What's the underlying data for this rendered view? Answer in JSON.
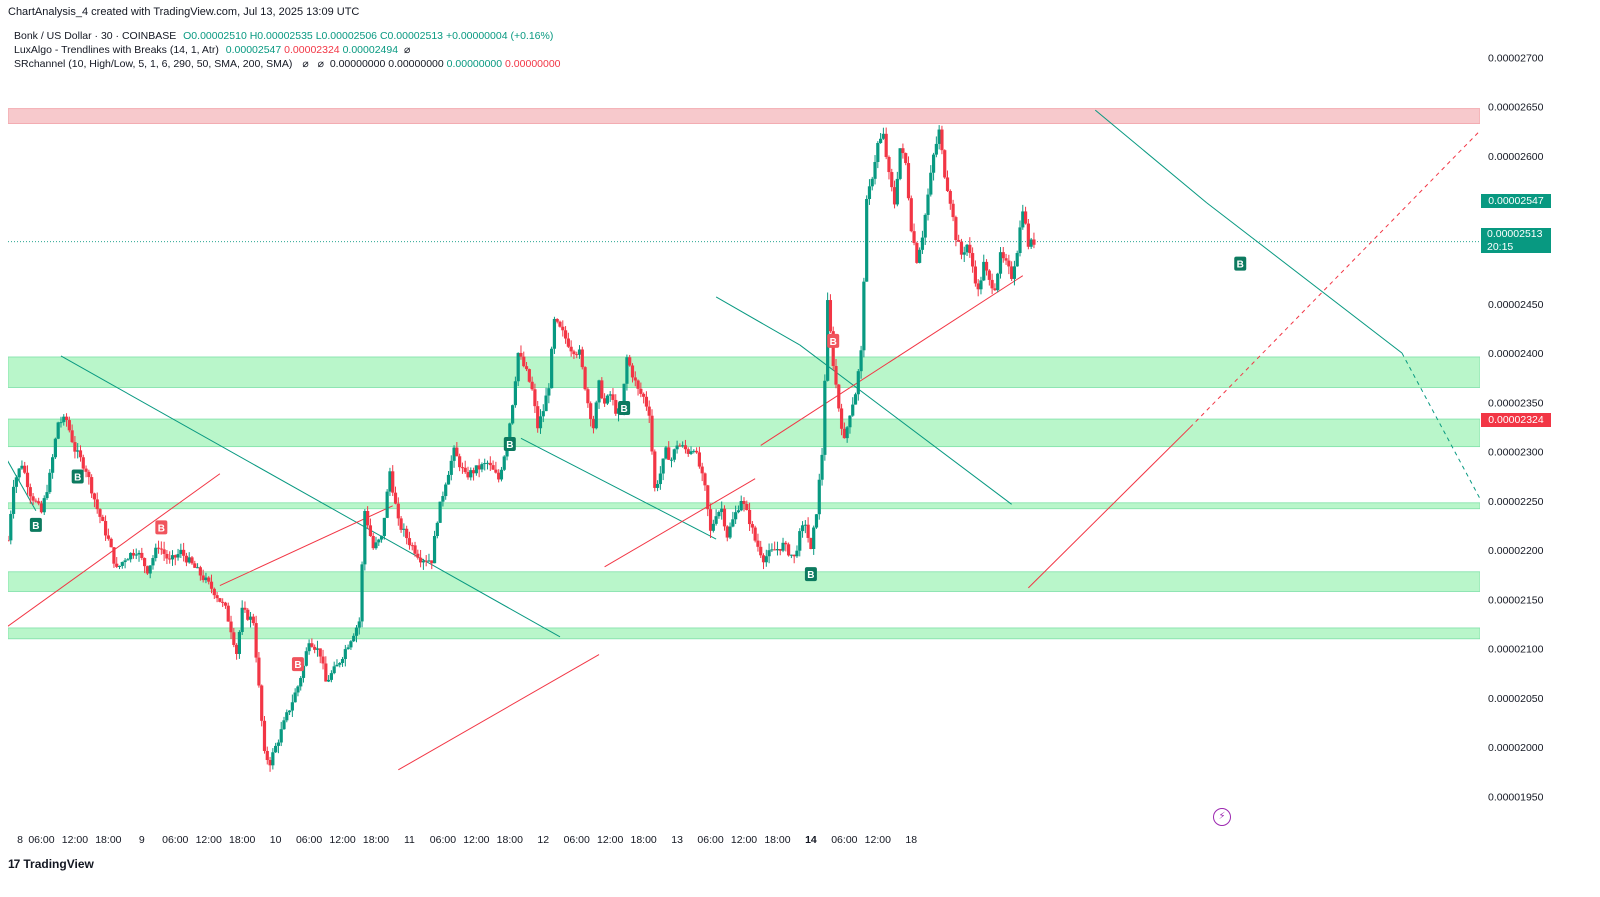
{
  "attribution": "ChartAnalysis_4 created with TradingView.com, Jul 13, 2025 13:09 UTC",
  "legend": {
    "main": {
      "name": "Bonk / US Dollar · 30 · COINBASE",
      "open": "O0.00002510",
      "high": "H0.00002535",
      "low": "L0.00002506",
      "close": "C0.00002513",
      "change": "+0.00000004 (+0.16%)"
    },
    "luxalgo": {
      "name": "LuxAlgo - Trendlines with Breaks (14, 1, Atr)",
      "v1": "0.00002547",
      "v2": "0.00002324",
      "v3": "0.00002494",
      "eye": "⌀"
    },
    "srchannel": {
      "name": "SRchannel (10, High/Low, 5, 1, 6, 290, 50, SMA, 200, SMA)",
      "eye1": "⌀",
      "eye2": "⌀",
      "v1": "0.00000000",
      "v2": "0.00000000",
      "v3": "0.00000000",
      "v4": "0.00000000"
    }
  },
  "price_labels": {
    "upper": "0.00002547",
    "current": "0.00002513",
    "countdown": "20:15",
    "lower": "0.00002324"
  },
  "footer": {
    "logo_text": "TradingView",
    "logo_mark": "17"
  },
  "colors": {
    "up": "#089981",
    "down": "#f23645",
    "zone_support": "#b9f6ca",
    "zone_resist": "#f7c9cc",
    "trend_up": "#f23645",
    "trend_down": "#089981",
    "grid": "#f0f3fa",
    "text": "#131722"
  },
  "chart_data": {
    "type": "candlestick",
    "title": "Bonk / US Dollar · 30 · COINBASE",
    "y_axis_ticks": [
      "0.00002700",
      "0.00002650",
      "0.00002600",
      "0.00002450",
      "0.00002400",
      "0.00002350",
      "0.00002300",
      "0.00002250",
      "0.00002200",
      "0.00002150",
      "0.00002100",
      "0.00002050",
      "0.00002000",
      "0.00001950"
    ],
    "y_axis_tick_values": [
      2.7e-05,
      2.65e-05,
      2.6e-05,
      2.45e-05,
      2.4e-05,
      2.35e-05,
      2.3e-05,
      2.25e-05,
      2.2e-05,
      2.15e-05,
      2.1e-05,
      2.05e-05,
      2e-05,
      1.95e-05
    ],
    "ylim": [
      1.918e-05,
      2.74e-05
    ],
    "x_axis_labels": [
      "8",
      "06:00",
      "12:00",
      "18:00",
      "9",
      "06:00",
      "12:00",
      "18:00",
      "10",
      "06:00",
      "12:00",
      "18:00",
      "11",
      "06:00",
      "12:00",
      "18:00",
      "12",
      "06:00",
      "12:00",
      "18:00",
      "13",
      "06:00",
      "12:00",
      "18:00",
      "14",
      "06:00",
      "12:00",
      "18"
    ],
    "x_axis_bold": [
      "14"
    ],
    "time_range_hours": [
      0,
      264
    ],
    "candle_interval": "30m",
    "path": [
      [
        0,
        2.21e-05
      ],
      [
        1,
        2.268e-05
      ],
      [
        2.5,
        2.288e-05
      ],
      [
        4,
        2.258e-05
      ],
      [
        6,
        2.238e-05
      ],
      [
        7.5,
        2.275e-05
      ],
      [
        9,
        2.33e-05
      ],
      [
        10.5,
        2.332e-05
      ],
      [
        12,
        2.302e-05
      ],
      [
        14,
        2.282e-05
      ],
      [
        16,
        2.242e-05
      ],
      [
        18,
        2.21e-05
      ],
      [
        19.5,
        2.18e-05
      ],
      [
        21,
        2.192e-05
      ],
      [
        23,
        2.2e-05
      ],
      [
        25,
        2.18e-05
      ],
      [
        27,
        2.205e-05
      ],
      [
        29,
        2.188e-05
      ],
      [
        31,
        2.198e-05
      ],
      [
        33,
        2.185e-05
      ],
      [
        35,
        2.172e-05
      ],
      [
        37,
        2.158e-05
      ],
      [
        39,
        2.14e-05
      ],
      [
        40,
        2.12e-05
      ],
      [
        41,
        2.096e-05
      ],
      [
        42,
        2.138e-05
      ],
      [
        44,
        2.128e-05
      ],
      [
        45,
        2.06e-05
      ],
      [
        46,
        1.992e-05
      ],
      [
        47,
        1.985e-05
      ],
      [
        48.5,
        2.008e-05
      ],
      [
        50,
        2.032e-05
      ],
      [
        52,
        2.062e-05
      ],
      [
        53,
        2.082e-05
      ],
      [
        54,
        2.11e-05
      ],
      [
        56,
        2.095e-05
      ],
      [
        57,
        2.066e-05
      ],
      [
        59,
        2.082e-05
      ],
      [
        61,
        2.105e-05
      ],
      [
        63,
        2.128e-05
      ],
      [
        64,
        2.24e-05
      ],
      [
        65.5,
        2.202e-05
      ],
      [
        67,
        2.212e-05
      ],
      [
        68.5,
        2.28e-05
      ],
      [
        70,
        2.228e-05
      ],
      [
        72,
        2.208e-05
      ],
      [
        74,
        2.192e-05
      ],
      [
        76,
        2.19e-05
      ],
      [
        77,
        2.232e-05
      ],
      [
        78.5,
        2.27e-05
      ],
      [
        80,
        2.3e-05
      ],
      [
        82,
        2.275e-05
      ],
      [
        84,
        2.282e-05
      ],
      [
        86,
        2.288e-05
      ],
      [
        88,
        2.272e-05
      ],
      [
        89.5,
        2.31e-05
      ],
      [
        90.5,
        2.35e-05
      ],
      [
        91.5,
        2.4e-05
      ],
      [
        93,
        2.38e-05
      ],
      [
        94,
        2.362e-05
      ],
      [
        95,
        2.325e-05
      ],
      [
        96,
        2.342e-05
      ],
      [
        97,
        2.368e-05
      ],
      [
        98,
        2.432e-05
      ],
      [
        99.5,
        2.42e-05
      ],
      [
        101,
        2.405e-05
      ],
      [
        102.5,
        2.4e-05
      ],
      [
        104,
        2.35e-05
      ],
      [
        105,
        2.325e-05
      ],
      [
        106,
        2.368e-05
      ],
      [
        107,
        2.348e-05
      ],
      [
        108,
        2.358e-05
      ],
      [
        109,
        2.342e-05
      ],
      [
        110,
        2.338e-05
      ],
      [
        111,
        2.395e-05
      ],
      [
        113,
        2.362e-05
      ],
      [
        114,
        2.355e-05
      ],
      [
        115,
        2.34e-05
      ],
      [
        116,
        2.262e-05
      ],
      [
        117,
        2.278e-05
      ],
      [
        118,
        2.3e-05
      ],
      [
        119,
        2.292e-05
      ],
      [
        120,
        2.308e-05
      ],
      [
        122,
        2.3e-05
      ],
      [
        123,
        2.305e-05
      ],
      [
        124,
        2.285e-05
      ],
      [
        125,
        2.262e-05
      ],
      [
        126,
        2.218e-05
      ],
      [
        127,
        2.238e-05
      ],
      [
        128,
        2.242e-05
      ],
      [
        129,
        2.215e-05
      ],
      [
        130,
        2.23e-05
      ],
      [
        131.5,
        2.252e-05
      ],
      [
        133,
        2.23e-05
      ],
      [
        134,
        2.21e-05
      ],
      [
        135.5,
        2.192e-05
      ],
      [
        137,
        2.198e-05
      ],
      [
        139,
        2.205e-05
      ],
      [
        141,
        2.192e-05
      ],
      [
        142,
        2.215e-05
      ],
      [
        143,
        2.228e-05
      ],
      [
        144,
        2.198e-05
      ],
      [
        145,
        2.24e-05
      ],
      [
        146,
        2.298e-05
      ],
      [
        147,
        2.45e-05
      ],
      [
        148,
        2.39e-05
      ],
      [
        149,
        2.345e-05
      ],
      [
        150,
        2.31e-05
      ],
      [
        151,
        2.34e-05
      ],
      [
        152,
        2.36e-05
      ],
      [
        153,
        2.4e-05
      ],
      [
        154,
        2.552e-05
      ],
      [
        155,
        2.58e-05
      ],
      [
        156,
        2.612e-05
      ],
      [
        157,
        2.62e-05
      ],
      [
        158,
        2.58e-05
      ],
      [
        159,
        2.552e-05
      ],
      [
        160,
        2.608e-05
      ],
      [
        161,
        2.592e-05
      ],
      [
        162,
        2.528e-05
      ],
      [
        163,
        2.495e-05
      ],
      [
        164,
        2.52e-05
      ],
      [
        165,
        2.56e-05
      ],
      [
        166,
        2.6e-05
      ],
      [
        167,
        2.625e-05
      ],
      [
        168,
        2.582e-05
      ],
      [
        169,
        2.555e-05
      ],
      [
        170,
        2.518e-05
      ],
      [
        171,
        2.5e-05
      ],
      [
        172,
        2.51e-05
      ],
      [
        173,
        2.488e-05
      ],
      [
        174,
        2.462e-05
      ],
      [
        175,
        2.49e-05
      ],
      [
        176,
        2.472e-05
      ],
      [
        177,
        2.468e-05
      ],
      [
        178,
        2.498e-05
      ],
      [
        179,
        2.49e-05
      ],
      [
        180,
        2.478e-05
      ],
      [
        181,
        2.505e-05
      ],
      [
        182,
        2.548e-05
      ],
      [
        183,
        2.51e-05
      ],
      [
        184,
        2.513e-05
      ]
    ],
    "support_zones": [
      [
        2.365e-05,
        2.396e-05
      ],
      [
        2.305e-05,
        2.333e-05
      ],
      [
        2.242e-05,
        2.248e-05
      ],
      [
        2.158e-05,
        2.178e-05
      ],
      [
        2.11e-05,
        2.121e-05
      ]
    ],
    "resistance_zones": [
      [
        2.633e-05,
        2.648e-05
      ]
    ],
    "trendlines_down": [
      {
        "from": [
          -1,
          2.3e-05
        ],
        "to": [
          5,
          2.24e-05
        ]
      },
      {
        "from": [
          9.5,
          2.397e-05
        ],
        "to": [
          99,
          2.112e-05
        ]
      },
      {
        "from": [
          92,
          2.3135e-05
        ],
        "to": [
          127,
          2.2112e-05
        ]
      },
      {
        "from": [
          127,
          2.4569e-05
        ],
        "to": [
          142,
          2.4082e-05
        ]
      },
      {
        "from": [
          142,
          2.4082e-05
        ],
        "to": [
          180,
          2.2465e-05
        ]
      },
      {
        "from": [
          195,
          2.6465e-05
        ],
        "to": [
          215,
          2.5524e-05
        ]
      },
      {
        "from": [
          215,
          2.5524e-05
        ],
        "to": [
          250,
          2.4e-05
        ]
      },
      {
        "from": [
          250,
          2.4e-05
        ],
        "to": [
          268,
          2.21e-05
        ],
        "dashed": true
      }
    ],
    "trendlines_up": [
      {
        "from": [
          -1,
          2.1188e-05
        ],
        "to": [
          38,
          2.2775e-05
        ]
      },
      {
        "from": [
          38,
          2.164e-05
        ],
        "to": [
          69,
          2.245e-05
        ]
      },
      {
        "from": [
          70,
          1.977e-05
        ],
        "to": [
          106,
          2.094e-05
        ]
      },
      {
        "from": [
          107,
          2.183e-05
        ],
        "to": [
          134,
          2.2725e-05
        ]
      },
      {
        "from": [
          135,
          2.3062e-05
        ],
        "to": [
          182,
          2.4785e-05
        ]
      },
      {
        "from": [
          183,
          2.1617e-05
        ],
        "to": [
          212,
          2.3245e-05
        ]
      },
      {
        "from": [
          212,
          2.3245e-05
        ],
        "to": [
          270,
          2.6603e-05
        ],
        "dashed": true
      }
    ],
    "signals": [
      {
        "t": 5,
        "type": "buy",
        "label": "B"
      },
      {
        "t": 12.5,
        "type": "buy",
        "label": "B"
      },
      {
        "t": 27.5,
        "type": "sell",
        "label": "B"
      },
      {
        "t": 52,
        "type": "sell",
        "label": "B"
      },
      {
        "t": 90,
        "type": "buy",
        "label": "B"
      },
      {
        "t": 110.5,
        "type": "buy",
        "label": "B"
      },
      {
        "t": 144,
        "type": "buy",
        "label": "B"
      },
      {
        "t": 148,
        "type": "sell",
        "label": "B"
      },
      {
        "t": 221,
        "type": "buy",
        "label": "B"
      }
    ],
    "current_price": 2.513e-05
  }
}
